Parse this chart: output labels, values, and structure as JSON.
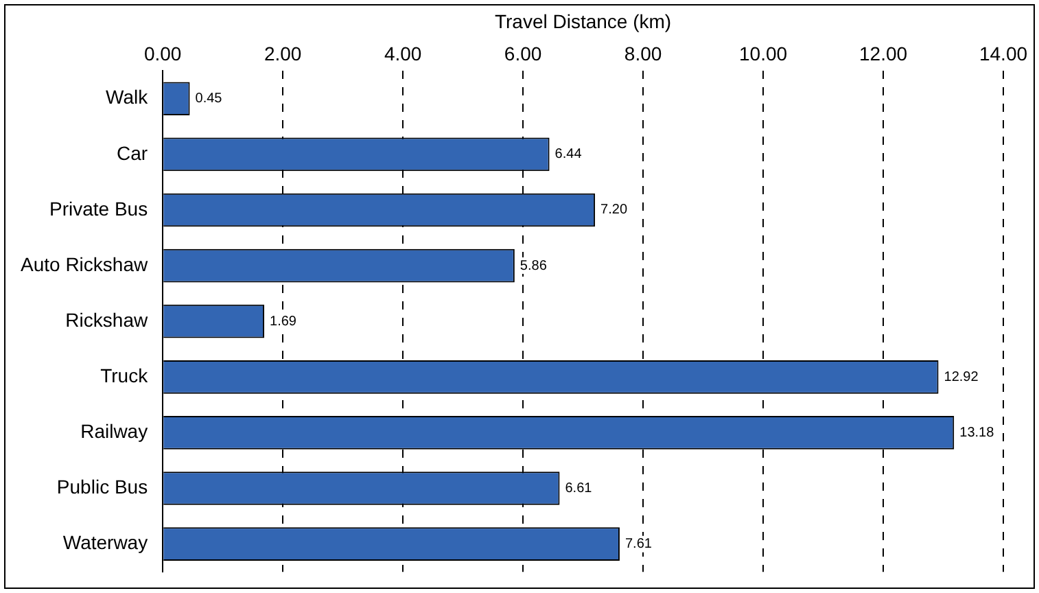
{
  "chart_data": {
    "type": "bar",
    "orientation": "horizontal",
    "xlabel": "Travel Distance (km)",
    "categories": [
      "Walk",
      "Car",
      "Private Bus",
      "Auto Rickshaw",
      "Rickshaw",
      "Truck",
      "Railway",
      "Public Bus",
      "Waterway"
    ],
    "values": [
      0.45,
      6.44,
      7.2,
      5.86,
      1.69,
      12.92,
      13.18,
      6.61,
      7.61
    ],
    "value_labels": [
      "0.45",
      "6.44",
      "7.20",
      "5.86",
      "1.69",
      "12.92",
      "13.18",
      "6.61",
      "7.61"
    ],
    "color": "#3366b3",
    "xlim": [
      0,
      14
    ],
    "xticks": [
      {
        "value": 0,
        "label": "0.00"
      },
      {
        "value": 2,
        "label": "2.00"
      },
      {
        "value": 4,
        "label": "4.00"
      },
      {
        "value": 6,
        "label": "6.00"
      },
      {
        "value": 8,
        "label": "8.00"
      },
      {
        "value": 10,
        "label": "10.00"
      },
      {
        "value": 12,
        "label": "12.00"
      },
      {
        "value": 14,
        "label": "14.00"
      }
    ],
    "grid": "x"
  }
}
